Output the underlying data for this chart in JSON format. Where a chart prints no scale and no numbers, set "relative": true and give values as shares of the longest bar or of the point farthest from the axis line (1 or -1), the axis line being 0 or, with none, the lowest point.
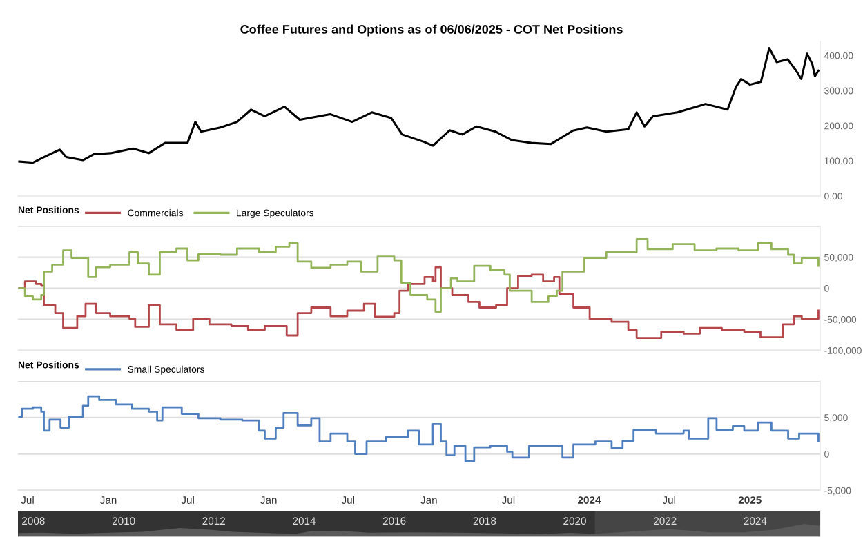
{
  "chart_data": [
    {
      "type": "line",
      "title": "Coffee Futures and Options as of 06/06/2025 - COT Net Positions",
      "tick_labels": "y",
      "xlim": [
        "2020-06-09",
        "2025-06-10"
      ],
      "ylim": [
        0,
        440
      ],
      "yticks": [
        {
          "value": 0,
          "label": "0.00"
        },
        {
          "value": 100,
          "label": "100.00"
        },
        {
          "value": 200,
          "label": "200.00"
        },
        {
          "value": 300,
          "label": "300.00"
        },
        {
          "value": 400,
          "label": "400.00"
        }
      ],
      "series": [
        {
          "color": "#000000",
          "x": [
            "2020-06-12",
            "2020-07-13",
            "2020-08-08",
            "2020-09-12",
            "2020-09-27",
            "2020-11-04",
            "2020-11-29",
            "2021-01-06",
            "2021-02-26",
            "2021-04-03",
            "2021-05-10",
            "2021-06-30",
            "2021-07-18",
            "2021-07-31",
            "2021-09-13",
            "2021-10-21",
            "2021-11-22",
            "2021-12-23",
            "2022-02-06",
            "2022-03-13",
            "2022-05-21",
            "2022-07-10",
            "2022-08-24",
            "2022-10-07",
            "2022-11-01",
            "2022-12-21",
            "2023-01-10",
            "2023-02-17",
            "2023-03-18",
            "2023-04-19",
            "2023-06-02",
            "2023-07-09",
            "2023-08-22",
            "2023-10-06",
            "2023-11-25",
            "2023-12-27",
            "2024-02-09",
            "2024-03-30",
            "2024-04-18",
            "2024-05-06",
            "2024-05-25",
            "2024-07-20",
            "2024-09-22",
            "2024-11-11",
            "2024-11-30",
            "2024-12-12",
            "2025-01-01",
            "2025-01-26",
            "2025-02-14",
            "2025-03-03",
            "2025-03-28",
            "2025-04-16",
            "2025-04-28",
            "2025-05-11",
            "2025-05-23",
            "2025-05-29",
            "2025-06-06"
          ],
          "values": [
            98,
            95,
            111,
            132,
            111,
            102,
            119,
            122,
            135,
            122,
            151,
            151,
            211,
            183,
            195,
            211,
            246,
            227,
            254,
            217,
            233,
            211,
            238,
            222,
            175,
            154,
            143,
            187,
            175,
            198,
            183,
            159,
            151,
            148,
            186,
            195,
            183,
            190,
            238,
            198,
            227,
            238,
            262,
            246,
            310,
            333,
            317,
            325,
            421,
            381,
            389,
            357,
            333,
            405,
            376,
            341,
            357
          ]
        }
      ]
    },
    {
      "type": "step",
      "legend_title": "Net Positions",
      "legend": "top left",
      "grid": "y",
      "tick_labels": "y",
      "xlim": [
        "2020-06-09",
        "2025-06-10"
      ],
      "ylim": [
        -100000,
        100000
      ],
      "yticks": [
        {
          "value": -100000,
          "label": "-100,000"
        },
        {
          "value": -50000,
          "label": "-50,000"
        },
        0,
        {
          "value": 50000,
          "label": "50,000"
        },
        {
          "value": 100000,
          "label": null
        }
      ],
      "series": [
        {
          "name": "Commercials",
          "color": "#b5474b",
          "x": [
            "2020-06-12",
            "2020-06-25",
            "2020-07-20",
            "2020-08-01",
            "2020-08-07",
            "2020-09-02",
            "2020-09-20",
            "2020-10-22",
            "2020-11-10",
            "2020-12-04",
            "2021-01-05",
            "2021-02-18",
            "2021-03-03",
            "2021-04-03",
            "2021-04-28",
            "2021-06-05",
            "2021-07-13",
            "2021-08-19",
            "2021-10-08",
            "2021-11-15",
            "2021-12-23",
            "2022-02-11",
            "2022-03-08",
            "2022-04-08",
            "2022-05-22",
            "2022-06-29",
            "2022-08-06",
            "2022-08-31",
            "2022-10-14",
            "2022-10-26",
            "2022-11-14",
            "2022-12-22",
            "2023-01-10",
            "2023-01-16",
            "2023-01-28",
            "2023-02-23",
            "2023-04-01",
            "2023-04-26",
            "2023-06-03",
            "2023-06-28",
            "2023-07-23",
            "2023-08-23",
            "2023-09-18",
            "2023-10-13",
            "2023-10-25",
            "2023-11-26",
            "2024-01-02",
            "2024-02-21",
            "2024-03-30",
            "2024-04-18",
            "2024-06-13",
            "2024-08-03",
            "2024-09-09",
            "2024-10-29",
            "2024-12-19",
            "2025-01-25",
            "2025-03-17",
            "2025-04-11",
            "2025-04-29",
            "2025-06-06"
          ],
          "values": [
            0,
            11000,
            7000,
            4000,
            -27000,
            -40000,
            -64000,
            -45000,
            -25000,
            -40000,
            -45000,
            -49000,
            -62000,
            -27000,
            -58000,
            -67000,
            -49000,
            -58000,
            -61000,
            -67000,
            -61000,
            -76000,
            -40000,
            -31000,
            -45000,
            -36000,
            -25000,
            -46000,
            -40000,
            -4000,
            7000,
            18000,
            11000,
            34000,
            0,
            -11000,
            -22000,
            -31000,
            -27000,
            0,
            20000,
            22000,
            11000,
            18000,
            -9000,
            -31000,
            -49000,
            -54000,
            -67000,
            -80000,
            -70000,
            -73000,
            -64000,
            -67000,
            -70000,
            -79000,
            -58000,
            -45000,
            -49000,
            -36000
          ]
        },
        {
          "name": "Large Speculators",
          "color": "#94b45a",
          "x": [
            "2020-06-12",
            "2020-06-25",
            "2020-07-13",
            "2020-08-01",
            "2020-08-07",
            "2020-08-26",
            "2020-09-20",
            "2020-10-09",
            "2020-11-16",
            "2020-12-04",
            "2021-01-05",
            "2021-02-18",
            "2021-03-09",
            "2021-04-03",
            "2021-04-28",
            "2021-06-05",
            "2021-06-30",
            "2021-07-25",
            "2021-09-13",
            "2021-10-21",
            "2021-12-10",
            "2022-01-17",
            "2022-02-17",
            "2022-03-08",
            "2022-04-08",
            "2022-05-22",
            "2022-06-29",
            "2022-07-30",
            "2022-09-06",
            "2022-10-14",
            "2022-10-30",
            "2022-11-20",
            "2022-12-28",
            "2023-01-16",
            "2023-01-28",
            "2023-02-20",
            "2023-03-07",
            "2023-04-14",
            "2023-05-21",
            "2023-06-22",
            "2023-07-04",
            "2023-08-23",
            "2023-09-30",
            "2023-10-19",
            "2023-11-01",
            "2023-12-21",
            "2024-02-09",
            "2024-03-30",
            "2024-04-18",
            "2024-05-13",
            "2024-07-09",
            "2024-08-28",
            "2024-10-17",
            "2024-12-06",
            "2025-01-19",
            "2025-02-19",
            "2025-03-29",
            "2025-04-11",
            "2025-04-29",
            "2025-06-06"
          ],
          "values": [
            0,
            -13000,
            -18000,
            -11000,
            27000,
            38000,
            61000,
            49000,
            18000,
            34000,
            38000,
            58000,
            40000,
            22000,
            58000,
            64000,
            45000,
            55000,
            54000,
            64000,
            58000,
            67000,
            73000,
            43000,
            33000,
            38000,
            43000,
            27000,
            51000,
            45000,
            9000,
            -11000,
            -18000,
            -38000,
            0,
            16000,
            11000,
            36000,
            29000,
            22000,
            -4000,
            -22000,
            -13000,
            -4000,
            27000,
            49000,
            58000,
            58000,
            79000,
            63000,
            71000,
            61000,
            64000,
            61000,
            73000,
            63000,
            54000,
            40000,
            49000,
            36000
          ]
        }
      ]
    },
    {
      "type": "step",
      "legend_title": "Net Positions",
      "legend": "top left",
      "grid": "y",
      "xlim": [
        "2020-06-09",
        "2025-06-10"
      ],
      "ylim": [
        -5000,
        10000
      ],
      "xticks": [
        {
          "value": "2020-07-01",
          "label": "Jul"
        },
        {
          "value": "2021-01-01",
          "label": "Jan"
        },
        {
          "value": "2021-07-01",
          "label": "Jul"
        },
        {
          "value": "2022-01-01",
          "label": "Jan"
        },
        {
          "value": "2022-07-01",
          "label": "Jul"
        },
        {
          "value": "2023-01-01",
          "label": "Jan"
        },
        {
          "value": "2023-07-01",
          "label": "Jul"
        },
        {
          "value": "2024-01-01",
          "label": "2024"
        },
        {
          "value": "2024-07-01",
          "label": "Jul"
        },
        {
          "value": "2025-01-01",
          "label": "2025"
        }
      ],
      "yticks": [
        {
          "value": -5000,
          "label": "-5,000"
        },
        0,
        {
          "value": 5000,
          "label": "5,000"
        },
        {
          "value": 10000,
          "label": null
        }
      ],
      "series": [
        {
          "name": "Small Speculators",
          "color": "#4f7fbf",
          "x": [
            "2020-06-12",
            "2020-06-18",
            "2020-07-13",
            "2020-08-01",
            "2020-08-07",
            "2020-08-20",
            "2020-09-14",
            "2020-10-03",
            "2020-11-04",
            "2020-11-16",
            "2020-12-11",
            "2021-01-18",
            "2021-02-24",
            "2021-04-03",
            "2021-04-22",
            "2021-05-04",
            "2021-06-17",
            "2021-07-25",
            "2021-09-13",
            "2021-11-02",
            "2021-12-10",
            "2021-12-23",
            "2022-01-17",
            "2022-02-04",
            "2022-03-08",
            "2022-04-08",
            "2022-04-27",
            "2022-05-22",
            "2022-06-29",
            "2022-07-17",
            "2022-08-12",
            "2022-09-25",
            "2022-11-14",
            "2022-12-09",
            "2023-01-10",
            "2023-01-28",
            "2023-02-10",
            "2023-02-28",
            "2023-03-25",
            "2023-04-14",
            "2023-05-21",
            "2023-06-28",
            "2023-07-10",
            "2023-08-17",
            "2023-10-06",
            "2023-11-01",
            "2023-11-26",
            "2024-01-15",
            "2024-02-21",
            "2024-03-17",
            "2024-04-11",
            "2024-06-01",
            "2024-08-03",
            "2024-08-15",
            "2024-09-28",
            "2024-10-17",
            "2024-11-23",
            "2024-12-19",
            "2025-01-19",
            "2025-02-19",
            "2025-03-29",
            "2025-04-23",
            "2025-06-06"
          ],
          "values": [
            5100,
            6200,
            6400,
            5800,
            3200,
            4700,
            3600,
            5100,
            6600,
            7900,
            7400,
            6800,
            6200,
            5800,
            4600,
            6400,
            5500,
            4900,
            4700,
            4600,
            3200,
            2100,
            3600,
            5600,
            3900,
            4900,
            1700,
            2800,
            1700,
            0,
            1700,
            2300,
            3200,
            1300,
            4100,
            1700,
            -200,
            1100,
            -1000,
            900,
            1100,
            300,
            -500,
            1100,
            1100,
            -500,
            1300,
            1700,
            800,
            1800,
            3300,
            2800,
            3200,
            2100,
            4900,
            3300,
            3800,
            3200,
            4300,
            3200,
            2100,
            2800,
            1800
          ]
        }
      ]
    },
    {
      "type": "area",
      "relative": true,
      "tick_labels": "x",
      "xlim": [
        "2007-08-29",
        "2025-06-10"
      ],
      "xticks": [
        {
          "value": "2008-01-01",
          "label": "2008"
        },
        {
          "value": "2010-01-01",
          "label": "2010"
        },
        {
          "value": "2012-01-01",
          "label": "2012"
        },
        {
          "value": "2014-01-01",
          "label": "2014"
        },
        {
          "value": "2016-01-01",
          "label": "2016"
        },
        {
          "value": "2018-01-01",
          "label": "2018"
        },
        {
          "value": "2020-01-01",
          "label": "2020"
        },
        {
          "value": "2022-01-01",
          "label": "2022"
        },
        {
          "value": "2024-01-01",
          "label": "2024"
        }
      ],
      "bands": [
        {
          "axis": "x",
          "from": "2020-06-12",
          "to": "2025-06-06",
          "color": "#454545"
        }
      ],
      "series": [
        {
          "color": "#5a5a5a",
          "x": [
            "2007-09-01",
            "2008-03-01",
            "2008-12-01",
            "2009-06-01",
            "2010-06-01",
            "2011-04-01",
            "2011-12-01",
            "2012-06-01",
            "2013-06-01",
            "2013-11-01",
            "2014-03-01",
            "2014-10-01",
            "2015-06-01",
            "2016-06-01",
            "2017-06-01",
            "2018-06-01",
            "2019-04-01",
            "2019-12-01",
            "2020-06-01",
            "2021-07-01",
            "2022-02-01",
            "2023-01-01",
            "2023-10-01",
            "2024-06-01",
            "2025-02-01",
            "2025-06-06"
          ],
          "values": [
            0.3,
            0.33,
            0.25,
            0.3,
            0.4,
            0.68,
            0.55,
            0.4,
            0.28,
            0.25,
            0.45,
            0.48,
            0.33,
            0.35,
            0.33,
            0.28,
            0.22,
            0.32,
            0.24,
            0.47,
            0.6,
            0.36,
            0.36,
            0.55,
            1.0,
            0.85
          ]
        }
      ]
    }
  ]
}
